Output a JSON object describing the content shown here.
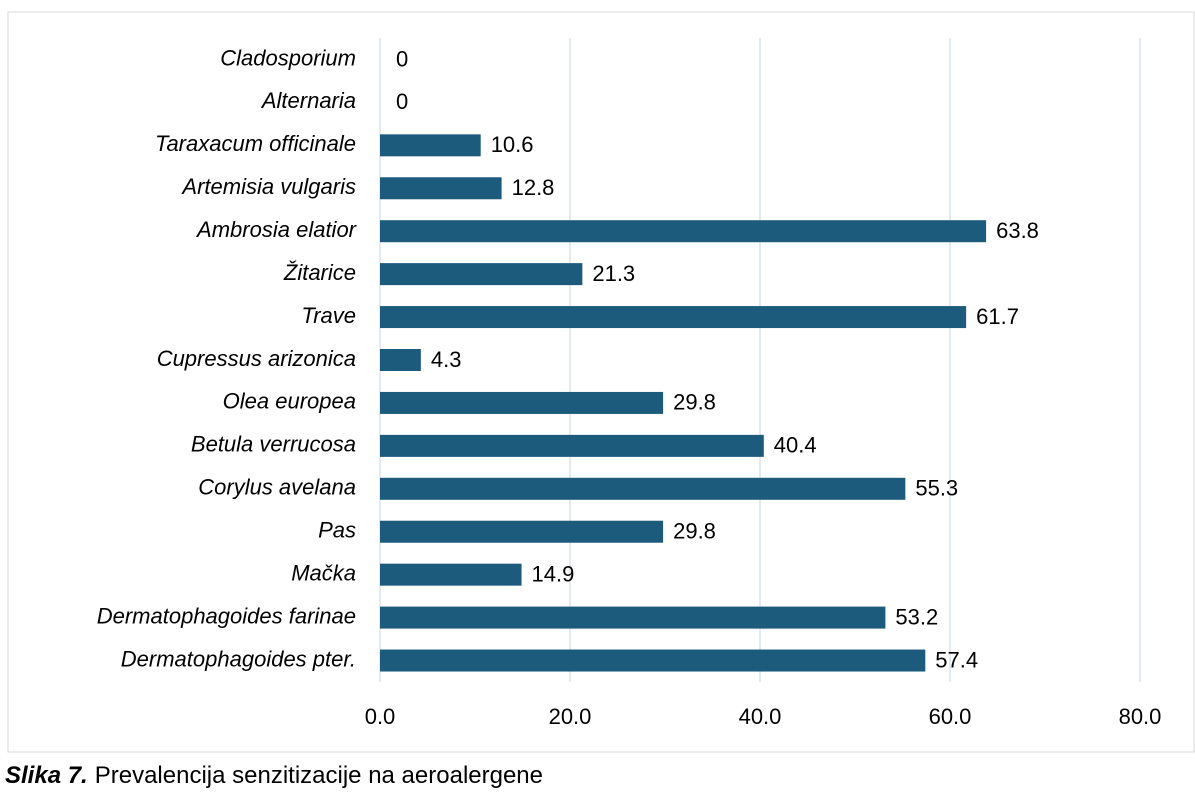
{
  "chart_data": {
    "type": "barh",
    "categories": [
      "Cladosporium",
      "Alternaria",
      "Taraxacum officinale",
      "Artemisia vulgaris",
      "Ambrosia elatior",
      "Žitarice",
      "Trave",
      "Cupressus arizonica",
      "Olea europea",
      "Betula verrucosa",
      "Corylus avelana",
      "Pas",
      "Mačka",
      "Dermatophagoides farinae",
      "Dermatophagoides pter."
    ],
    "values": [
      0,
      0,
      10.6,
      12.8,
      63.8,
      21.3,
      61.7,
      4.3,
      29.8,
      40.4,
      55.3,
      29.8,
      14.9,
      53.2,
      57.4
    ],
    "color": "#1d5b7d",
    "xlim": [
      0,
      80
    ],
    "xticks": [
      {
        "value": 0,
        "label": "0.0"
      },
      {
        "value": 20,
        "label": "20.0"
      },
      {
        "value": 40,
        "label": "40.0"
      },
      {
        "value": 60,
        "label": "60.0"
      },
      {
        "value": 80,
        "label": "80.0"
      }
    ],
    "grid": true
  },
  "caption": {
    "label": "Slika 7.",
    "text": "Prevalencija senzitizacije na aeroalergene"
  }
}
